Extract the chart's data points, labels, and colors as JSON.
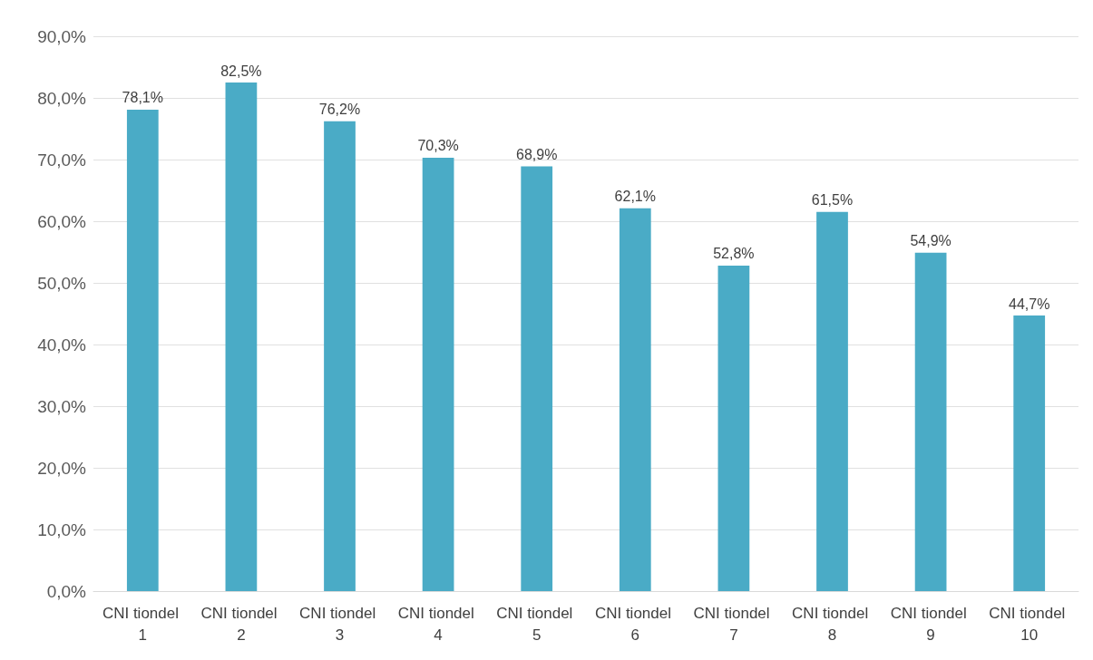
{
  "chart_data": {
    "type": "bar",
    "categories": [
      "CNI tiondel 1",
      "CNI tiondel 2",
      "CNI tiondel 3",
      "CNI tiondel 4",
      "CNI tiondel 5",
      "CNI tiondel 6",
      "CNI tiondel 7",
      "CNI tiondel 8",
      "CNI tiondel 9",
      "CNI tiondel 10"
    ],
    "values": [
      78.1,
      82.5,
      76.2,
      70.3,
      68.9,
      62.1,
      52.8,
      61.5,
      54.9,
      44.7
    ],
    "value_labels": [
      "78,1%",
      "82,5%",
      "76,2%",
      "70,3%",
      "68,9%",
      "62,1%",
      "52,8%",
      "61,5%",
      "54,9%",
      "44,7%"
    ],
    "color": "#4aabc6",
    "ylim": [
      0,
      90
    ],
    "yticks": [
      {
        "value": 0,
        "label": "0,0%"
      },
      {
        "value": 10,
        "label": "10,0%"
      },
      {
        "value": 20,
        "label": "20,0%"
      },
      {
        "value": 30,
        "label": "30,0%"
      },
      {
        "value": 40,
        "label": "40,0%"
      },
      {
        "value": 50,
        "label": "50,0%"
      },
      {
        "value": 60,
        "label": "60,0%"
      },
      {
        "value": 70,
        "label": "70,0%"
      },
      {
        "value": 80,
        "label": "80,0%"
      },
      {
        "value": 90,
        "label": "90,0%"
      }
    ],
    "grid": true
  }
}
